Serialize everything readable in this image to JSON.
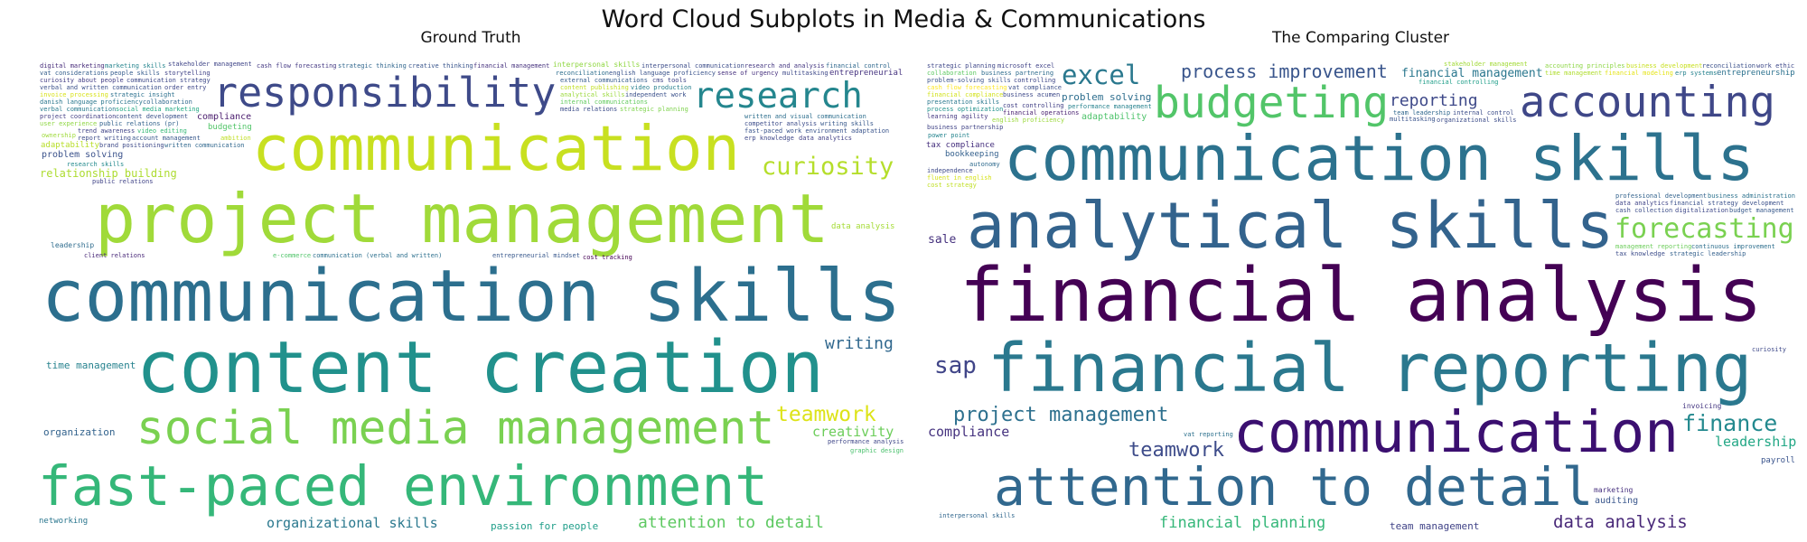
{
  "title": "Word Cloud Subplots in Media & Communications",
  "chart_data": [
    {
      "type": "wordcloud",
      "title": "Ground Truth",
      "words": [
        {
          "text": "communication skills",
          "weight": 100,
          "color": "#2c6f8e"
        },
        {
          "text": "content creation",
          "weight": 96,
          "color": "#21918c"
        },
        {
          "text": "project management",
          "weight": 90,
          "color": "#a0da39"
        },
        {
          "text": "social media management",
          "weight": 85,
          "color": "#7ad151"
        },
        {
          "text": "communication",
          "weight": 80,
          "color": "#c8e020"
        },
        {
          "text": "fast-paced environment",
          "weight": 68,
          "color": "#35b779"
        },
        {
          "text": "responsibility",
          "weight": 68,
          "color": "#3e4a89"
        },
        {
          "text": "research",
          "weight": 56,
          "color": "#24868e"
        },
        {
          "text": "curiosity",
          "weight": 50,
          "color": "#b5de2b"
        },
        {
          "text": "teamwork",
          "weight": 42,
          "color": "#dde318"
        },
        {
          "text": "organizational skills",
          "weight": 34,
          "color": "#2a788e"
        },
        {
          "text": "attention to detail",
          "weight": 31,
          "color": "#5ec962"
        },
        {
          "text": "relationship building",
          "weight": 25,
          "color": "#addc30"
        },
        {
          "text": "passion for people",
          "weight": 24,
          "color": "#1f9e89"
        },
        {
          "text": "time management",
          "weight": 22,
          "color": "#26828e"
        },
        {
          "text": "creativity",
          "weight": 21,
          "color": "#6ccd5a"
        },
        {
          "text": "organization",
          "weight": 21,
          "color": "#33638d"
        },
        {
          "text": "problem solving",
          "weight": 20,
          "color": "#3b528b"
        },
        {
          "text": "entrepreneurial mindset",
          "weight": 20,
          "color": "#38588c"
        },
        {
          "text": "entrepreneurial",
          "weight": 19,
          "color": "#463480"
        },
        {
          "text": "writing",
          "weight": 19,
          "color": "#31688e"
        },
        {
          "text": "communication (verbal and written)",
          "weight": 18,
          "color": "#2d708e"
        },
        {
          "text": "data analysis",
          "weight": 17,
          "color": "#a5db36"
        },
        {
          "text": "client relations",
          "weight": 17,
          "color": "#482878"
        },
        {
          "text": "public relations",
          "weight": 16,
          "color": "#414487"
        },
        {
          "text": "research skills",
          "weight": 16,
          "color": "#238a8d"
        },
        {
          "text": "adaptability",
          "weight": 15,
          "color": "#b8de29"
        },
        {
          "text": "performance analysis",
          "weight": 15,
          "color": "#3f4788"
        },
        {
          "text": "interpersonal skills",
          "weight": 14,
          "color": "#90d743"
        },
        {
          "text": "stakeholder management",
          "weight": 14,
          "color": "#404688"
        },
        {
          "text": "leadership",
          "weight": 13,
          "color": "#2f6c8e"
        },
        {
          "text": "cost tracking",
          "weight": 12,
          "color": "#440154"
        },
        {
          "text": "digital marketing",
          "weight": 12,
          "color": "#472c7a"
        },
        {
          "text": "cash flow forecasting",
          "weight": 12,
          "color": "#443983"
        },
        {
          "text": "strategic thinking",
          "weight": 12,
          "color": "#31678e"
        },
        {
          "text": "creative thinking",
          "weight": 12,
          "color": "#39558c"
        },
        {
          "text": "interpersonal communication",
          "weight": 12,
          "color": "#3d4e8a"
        },
        {
          "text": "research and analysis",
          "weight": 11,
          "color": "#453882"
        },
        {
          "text": "financial management",
          "weight": 11,
          "color": "#46327e"
        },
        {
          "text": "compliance",
          "weight": 11,
          "color": "#481a6c"
        },
        {
          "text": "financial control",
          "weight": 11,
          "color": "#30698e"
        },
        {
          "text": "vat considerations",
          "weight": 11,
          "color": "#355f8d"
        },
        {
          "text": "reconciliation",
          "weight": 11,
          "color": "#2e6e8e"
        },
        {
          "text": "english language proficiency",
          "weight": 11,
          "color": "#3a538b"
        },
        {
          "text": "marketing skills",
          "weight": 10,
          "color": "#25848e"
        },
        {
          "text": "graphic design",
          "weight": 10,
          "color": "#4ac16d"
        },
        {
          "text": "networking",
          "weight": 10,
          "color": "#2a768e"
        },
        {
          "text": "budgeting",
          "weight": 10,
          "color": "#52c569"
        },
        {
          "text": "people skills",
          "weight": 9,
          "color": "#365c8d"
        },
        {
          "text": "sense of urgency",
          "weight": 9,
          "color": "#46307e"
        },
        {
          "text": "curiosity about people",
          "weight": 9,
          "color": "#433e85"
        },
        {
          "text": "storytelling",
          "weight": 9,
          "color": "#404387"
        },
        {
          "text": "communication strategy",
          "weight": 8,
          "color": "#3e4989"
        },
        {
          "text": "external communications",
          "weight": 8,
          "color": "#365d8d"
        },
        {
          "text": "verbal and written communication",
          "weight": 8,
          "color": "#3b518b"
        },
        {
          "text": "content publishing",
          "weight": 8,
          "color": "#c2df23"
        },
        {
          "text": "invoice processing",
          "weight": 8,
          "color": "#d8e219"
        },
        {
          "text": "strategic insight",
          "weight": 8,
          "color": "#2c718e"
        },
        {
          "text": "video production",
          "weight": 8,
          "color": "#27808e"
        },
        {
          "text": "analytical skills",
          "weight": 8,
          "color": "#9bd93c"
        },
        {
          "text": "competitor analysis",
          "weight": 7,
          "color": "#3d4d8a"
        },
        {
          "text": "independent work",
          "weight": 8,
          "color": "#3b518b"
        },
        {
          "text": "danish language proficiency",
          "weight": 8,
          "color": "#2a778e"
        },
        {
          "text": "internal communications",
          "weight": 8,
          "color": "#63cb5f"
        },
        {
          "text": "verbal communication",
          "weight": 8,
          "color": "#297b8e"
        },
        {
          "text": "social media marketing",
          "weight": 8,
          "color": "#22a884"
        },
        {
          "text": "collaboration",
          "weight": 8,
          "color": "#30698e"
        },
        {
          "text": "media relations",
          "weight": 8,
          "color": "#3d4e8a"
        },
        {
          "text": "strategic planning",
          "weight": 8,
          "color": "#7fd34e"
        },
        {
          "text": "writing skills",
          "weight": 7,
          "color": "#38598c"
        },
        {
          "text": "project coordination",
          "weight": 8,
          "color": "#433e85"
        },
        {
          "text": "content development",
          "weight": 8,
          "color": "#3b528b"
        },
        {
          "text": "written and visual communication",
          "weight": 8,
          "color": "#2e6f8e"
        },
        {
          "text": "trend awareness",
          "weight": 7,
          "color": "#414487"
        },
        {
          "text": "e-commerce",
          "weight": 8,
          "color": "#50c46a"
        },
        {
          "text": "ownership",
          "weight": 8,
          "color": "#9fda3a"
        },
        {
          "text": "user experience",
          "weight": 8,
          "color": "#8fd744"
        },
        {
          "text": "fast-paced work environment adaptation",
          "weight": 6,
          "color": "#3a548c"
        },
        {
          "text": "video editing",
          "weight": 7,
          "color": "#38b977"
        },
        {
          "text": "ambition",
          "weight": 7,
          "color": "#c0df25"
        },
        {
          "text": "multitasking",
          "weight": 7,
          "color": "#3e4989"
        },
        {
          "text": "report writing",
          "weight": 6,
          "color": "#3e4c8a"
        },
        {
          "text": "cms tools",
          "weight": 7,
          "color": "#404588"
        },
        {
          "text": "account management",
          "weight": 6,
          "color": "#38588c"
        },
        {
          "text": "erp knowledge",
          "weight": 6,
          "color": "#3f4889"
        },
        {
          "text": "data analytics",
          "weight": 6,
          "color": "#424086"
        },
        {
          "text": "order entry",
          "weight": 6,
          "color": "#3f4889"
        },
        {
          "text": "brand positioning",
          "weight": 6,
          "color": "#3e4a89"
        },
        {
          "text": "written communication",
          "weight": 6,
          "color": "#31688e"
        },
        {
          "text": "public relations (pr)",
          "weight": 8,
          "color": "#33638d"
        }
      ]
    },
    {
      "type": "wordcloud",
      "title": "The Comparing Cluster",
      "words": [
        {
          "text": "financial analysis",
          "weight": 100,
          "color": "#440154"
        },
        {
          "text": "financial reporting",
          "weight": 88,
          "color": "#2a788e"
        },
        {
          "text": "analytical skills",
          "weight": 82,
          "color": "#33638d"
        },
        {
          "text": "communication skills",
          "weight": 80,
          "color": "#2c728e"
        },
        {
          "text": "communication",
          "weight": 72,
          "color": "#3b0f70"
        },
        {
          "text": "attention to detail",
          "weight": 64,
          "color": "#31688e"
        },
        {
          "text": "accounting",
          "weight": 48,
          "color": "#3f4788"
        },
        {
          "text": "budgeting",
          "weight": 50,
          "color": "#52c569"
        },
        {
          "text": "project management",
          "weight": 40,
          "color": "#2d708e"
        },
        {
          "text": "forecasting",
          "weight": 40,
          "color": "#7ad151"
        },
        {
          "text": "teamwork",
          "weight": 40,
          "color": "#3e4c8a"
        },
        {
          "text": "process improvement",
          "weight": 33,
          "color": "#39558c"
        },
        {
          "text": "data analysis",
          "weight": 32,
          "color": "#482878"
        },
        {
          "text": "financial management",
          "weight": 30,
          "color": "#2a778e"
        },
        {
          "text": "finance",
          "weight": 30,
          "color": "#23898e"
        },
        {
          "text": "reporting",
          "weight": 28,
          "color": "#3e4989"
        },
        {
          "text": "financial planning",
          "weight": 26,
          "color": "#35b779"
        },
        {
          "text": "problem solving",
          "weight": 24,
          "color": "#2e6e8e"
        },
        {
          "text": "excel",
          "weight": 24,
          "color": "#2a788e"
        },
        {
          "text": "team management",
          "weight": 22,
          "color": "#404387"
        },
        {
          "text": "compliance",
          "weight": 21,
          "color": "#46337f"
        },
        {
          "text": "leadership",
          "weight": 21,
          "color": "#22a785"
        },
        {
          "text": "performance management",
          "weight": 20,
          "color": "#26828e"
        },
        {
          "text": "adaptability",
          "weight": 20,
          "color": "#4ec36b"
        },
        {
          "text": "entrepreneurship",
          "weight": 19,
          "color": "#2c718e"
        },
        {
          "text": "financial controlling",
          "weight": 18,
          "color": "#1f9e89"
        },
        {
          "text": "sap",
          "weight": 20,
          "color": "#404588"
        },
        {
          "text": "tax compliance",
          "weight": 18,
          "color": "#46307e"
        },
        {
          "text": "bookkeeping",
          "weight": 16,
          "color": "#34608d"
        },
        {
          "text": "stakeholder management",
          "weight": 15,
          "color": "#a2da37"
        },
        {
          "text": "interpersonal skills",
          "weight": 15,
          "color": "#31678e"
        },
        {
          "text": "strategic planning",
          "weight": 14,
          "color": "#3f4889"
        },
        {
          "text": "accounting principles",
          "weight": 13,
          "color": "#8ed645"
        },
        {
          "text": "vat reporting",
          "weight": 13,
          "color": "#2d718e"
        },
        {
          "text": "business development",
          "weight": 12,
          "color": "#c8e020"
        },
        {
          "text": "microsoft excel",
          "weight": 12,
          "color": "#404387"
        },
        {
          "text": "auditing",
          "weight": 11,
          "color": "#39568c"
        },
        {
          "text": "invoicing",
          "weight": 12,
          "color": "#453781"
        },
        {
          "text": "marketing",
          "weight": 12,
          "color": "#46307e"
        },
        {
          "text": "multitasking",
          "weight": 13,
          "color": "#3a548c"
        },
        {
          "text": "reconciliation",
          "weight": 12,
          "color": "#3b518b"
        },
        {
          "text": "collaboration",
          "weight": 12,
          "color": "#5ec962"
        },
        {
          "text": "business partnering",
          "weight": 11,
          "color": "#2f6c8e"
        },
        {
          "text": "time management",
          "weight": 11,
          "color": "#b0dd2f"
        },
        {
          "text": "financial modeling",
          "weight": 11,
          "color": "#e5e419"
        },
        {
          "text": "cash flow forecasting",
          "weight": 10,
          "color": "#fde725"
        },
        {
          "text": "vat compliance",
          "weight": 10,
          "color": "#3c4f8a"
        },
        {
          "text": "financial compliance",
          "weight": 10,
          "color": "#d2e21b"
        },
        {
          "text": "problem-solving skills",
          "weight": 11,
          "color": "#3b528b"
        },
        {
          "text": "power point",
          "weight": 10,
          "color": "#25848e"
        },
        {
          "text": "process optimization",
          "weight": 9,
          "color": "#21918c"
        },
        {
          "text": "financial operations",
          "weight": 9,
          "color": "#481f70"
        },
        {
          "text": "business acumen",
          "weight": 9,
          "color": "#3e4a89"
        },
        {
          "text": "cost controlling",
          "weight": 9,
          "color": "#424086"
        },
        {
          "text": "team leadership",
          "weight": 9,
          "color": "#31688e"
        },
        {
          "text": "internal control",
          "weight": 9,
          "color": "#3d4e8a"
        },
        {
          "text": "learning agility",
          "weight": 9,
          "color": "#453882"
        },
        {
          "text": "professional development",
          "weight": 8,
          "color": "#33638d"
        },
        {
          "text": "autonomy",
          "weight": 9,
          "color": "#2f6b8e"
        },
        {
          "text": "english proficiency",
          "weight": 9,
          "color": "#9bd93c"
        },
        {
          "text": "organizational skills",
          "weight": 9,
          "color": "#3d4d8a"
        },
        {
          "text": "work ethic",
          "weight": 9,
          "color": "#3e4989"
        },
        {
          "text": "presentation skills",
          "weight": 10,
          "color": "#2a788e"
        },
        {
          "text": "erp systems",
          "weight": 8,
          "color": "#26828e"
        },
        {
          "text": "sale",
          "weight": 10,
          "color": "#46327e"
        },
        {
          "text": "payroll",
          "weight": 8,
          "color": "#3a548c"
        },
        {
          "text": "controlling",
          "weight": 8,
          "color": "#3f4889"
        },
        {
          "text": "business partnership",
          "weight": 8,
          "color": "#414487"
        },
        {
          "text": "independence",
          "weight": 8,
          "color": "#3e4a89"
        },
        {
          "text": "fluent in english",
          "weight": 8,
          "color": "#d5e21a"
        },
        {
          "text": "business administration",
          "weight": 8,
          "color": "#2c728e"
        },
        {
          "text": "data analytics",
          "weight": 7,
          "color": "#404588"
        },
        {
          "text": "financial strategy development",
          "weight": 7,
          "color": "#3b518b"
        },
        {
          "text": "cash collection",
          "weight": 7,
          "color": "#3d4e8a"
        },
        {
          "text": "digitalization",
          "weight": 7,
          "color": "#3f4889"
        },
        {
          "text": "management reporting",
          "weight": 7,
          "color": "#6ccd5a"
        },
        {
          "text": "budget management",
          "weight": 7,
          "color": "#38598c"
        },
        {
          "text": "cost strategy",
          "weight": 8,
          "color": "#c0df25"
        },
        {
          "text": "continuous improvement",
          "weight": 7,
          "color": "#2e6f8e"
        },
        {
          "text": "tax knowledge",
          "weight": 7,
          "color": "#3d4d8a"
        },
        {
          "text": "curiosity",
          "weight": 11,
          "color": "#3e4989"
        },
        {
          "text": "strategic leadership",
          "weight": 7,
          "color": "#34618d"
        }
      ]
    }
  ]
}
